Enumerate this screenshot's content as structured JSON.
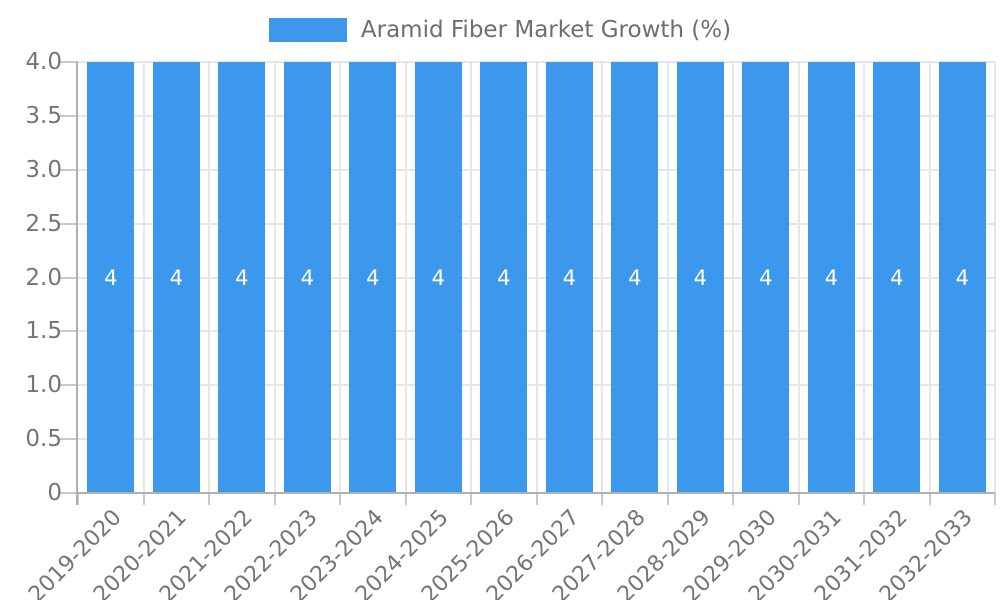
{
  "legend": {
    "label": "Aramid Fiber Market Growth (%)"
  },
  "chart_data": {
    "type": "bar",
    "title": "",
    "xlabel": "",
    "ylabel": "",
    "categories": [
      "2019-2020",
      "2020-2021",
      "2021-2022",
      "2022-2023",
      "2023-2024",
      "2024-2025",
      "2025-2026",
      "2026-2027",
      "2027-2028",
      "2028-2029",
      "2029-2030",
      "2030-2031",
      "2031-2032",
      "2032-2033"
    ],
    "series": [
      {
        "name": "Aramid Fiber Market Growth (%)",
        "values": [
          4,
          4,
          4,
          4,
          4,
          4,
          4,
          4,
          4,
          4,
          4,
          4,
          4,
          4
        ]
      }
    ],
    "bar_value_labels": [
      "4",
      "4",
      "4",
      "4",
      "4",
      "4",
      "4",
      "4",
      "4",
      "4",
      "4",
      "4",
      "4",
      "4"
    ],
    "ylim": [
      0,
      4
    ],
    "ytick_labels": [
      "0",
      "0.5",
      "1.0",
      "1.5",
      "2.0",
      "2.5",
      "3.0",
      "3.5",
      "4.0"
    ],
    "grid": true,
    "legend_position": "top"
  },
  "colors": {
    "bar": "#3c98ec",
    "grid": "#e6e6e6",
    "axis": "#b0b0b0",
    "tick": "#c9c9c9",
    "tick_text": "#757575",
    "legend_text": "#6e6e6e",
    "bar_label_text": "#ffffff",
    "background": "#ffffff"
  }
}
